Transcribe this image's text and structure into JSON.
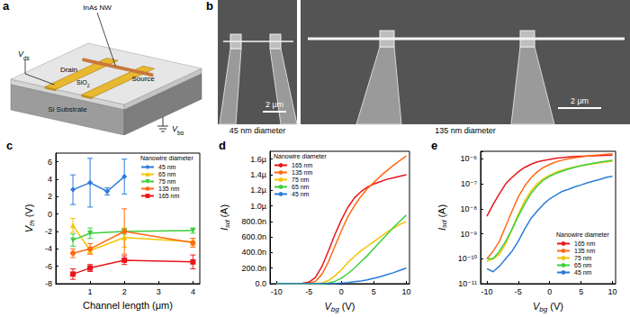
{
  "schematic": {
    "panel": "a",
    "nanowire": "InAs NW",
    "drain_voltage": "Vds",
    "drain": "Drain",
    "source": "Source",
    "oxide": "SiO2",
    "substrate": "Si Substrate",
    "gate_voltage": "Vbg"
  },
  "micrographs": {
    "panel": "b",
    "images": [
      {
        "scale_bar": "2 μm",
        "caption": "45 nm diameter"
      },
      {
        "scale_bar": "2 μm",
        "caption": "135 nm diameter"
      }
    ]
  },
  "chart_data": [
    {
      "type": "line",
      "title": "c",
      "x_label": "Channel length (μm)",
      "y_label": "Vth (V)",
      "legend_title": "Nanowire diameter",
      "legend": "upper right",
      "grid": false,
      "xlim": [
        0,
        4.2
      ],
      "xticks": [
        1,
        2,
        3,
        4
      ],
      "ylim": [
        -8,
        7
      ],
      "yticks": [
        -8,
        -6,
        -4,
        -2,
        0,
        2,
        4,
        6
      ],
      "series": [
        {
          "name": "45 nm",
          "color": "#2b7bd9",
          "marker": "diamond",
          "x": [
            0.5,
            1,
            1.5,
            2
          ],
          "values": [
            2.8,
            3.6,
            2.6,
            4.3
          ],
          "errors": [
            1.7,
            2.8,
            0.4,
            2.0
          ]
        },
        {
          "name": "65 nm",
          "color": "#f5c400",
          "marker": "triangle",
          "x": [
            0.5,
            1,
            2,
            4
          ],
          "values": [
            -1.3,
            -4.2,
            -2.7,
            -3.2
          ],
          "errors": [
            0.8,
            0.4,
            1.1,
            0.4
          ]
        },
        {
          "name": "75 nm",
          "color": "#3ccf3c",
          "marker": "triangle-down",
          "x": [
            0.5,
            1,
            2,
            4
          ],
          "values": [
            -3.0,
            -2.2,
            -2.0,
            -1.9
          ],
          "errors": [
            0.7,
            0.6,
            0.3,
            0.3
          ]
        },
        {
          "name": "135 nm",
          "color": "#ff6a13",
          "marker": "circle",
          "x": [
            0.5,
            1,
            2,
            4
          ],
          "values": [
            -4.5,
            -4.0,
            -2.0,
            -3.3
          ],
          "errors": [
            0.5,
            0.6,
            2.6,
            0.5
          ]
        },
        {
          "name": "165 nm",
          "color": "#e8161b",
          "marker": "square",
          "x": [
            0.5,
            1,
            2,
            4
          ],
          "values": [
            -6.9,
            -6.2,
            -5.3,
            -5.5
          ],
          "errors": [
            0.6,
            0.4,
            0.5,
            0.8
          ]
        }
      ]
    },
    {
      "type": "line",
      "title": "d",
      "x_label": "Vbg (V)",
      "y_label": "Isd (A)",
      "legend_title": "Nanowire diameter",
      "legend": "upper left",
      "grid": false,
      "xlim": [
        -11,
        10.5
      ],
      "xticks": [
        -10,
        -5,
        0,
        5,
        10
      ],
      "ylim": [
        0,
        1.7e-06
      ],
      "yticks": [
        {
          "value": 0,
          "label": "0.0"
        },
        {
          "value": 2e-07,
          "label": "200.0n"
        },
        {
          "value": 4e-07,
          "label": "400.0n"
        },
        {
          "value": 6e-07,
          "label": "600.0n"
        },
        {
          "value": 8e-07,
          "label": "800.0n"
        },
        {
          "value": 1e-06,
          "label": "1.0µ"
        },
        {
          "value": 1.2e-06,
          "label": "1.2µ"
        },
        {
          "value": 1.4e-06,
          "label": "1.4µ"
        },
        {
          "value": 1.6e-06,
          "label": "1.6µ"
        }
      ],
      "x": [
        -10,
        -9,
        -8,
        -7,
        -6,
        -5,
        -4,
        -3,
        -2,
        -1,
        0,
        1,
        2,
        3,
        4,
        5,
        6,
        7,
        8,
        9,
        10
      ],
      "series": [
        {
          "name": "165 nm",
          "color": "#e8161b",
          "values": [
            0,
            0,
            0,
            0,
            5e-09,
            2e-08,
            8e-08,
            2.2e-07,
            4.2e-07,
            6.3e-07,
            8.2e-07,
            9.8e-07,
            1.1e-06,
            1.18e-06,
            1.24e-06,
            1.28e-06,
            1.31e-06,
            1.34e-06,
            1.36e-06,
            1.38e-06,
            1.4e-06
          ]
        },
        {
          "name": "135 nm",
          "color": "#ff6a13",
          "values": [
            0,
            0,
            0,
            0,
            0,
            5e-09,
            3e-08,
            1.2e-07,
            2.8e-07,
            4.8e-07,
            6.8e-07,
            8.6e-07,
            1e-06,
            1.12e-06,
            1.22e-06,
            1.3e-06,
            1.38e-06,
            1.45e-06,
            1.52e-06,
            1.58e-06,
            1.64e-06
          ]
        },
        {
          "name": "75 nm",
          "color": "#f5c400",
          "values": [
            0,
            0,
            0,
            0,
            0,
            0,
            0,
            1e-08,
            4e-08,
            1e-07,
            1.8e-07,
            2.7e-07,
            3.5e-07,
            4.2e-07,
            4.8e-07,
            5.4e-07,
            6e-07,
            6.6e-07,
            7.1e-07,
            7.6e-07,
            8e-07
          ]
        },
        {
          "name": "65 nm",
          "color": "#3ccf3c",
          "values": [
            0,
            0,
            0,
            0,
            0,
            0,
            0,
            0,
            1e-08,
            3e-08,
            7e-08,
            1.3e-07,
            2e-07,
            2.8e-07,
            3.6e-07,
            4.5e-07,
            5.4e-07,
            6.3e-07,
            7.2e-07,
            8e-07,
            8.8e-07
          ]
        },
        {
          "name": "45 nm",
          "color": "#2b7bd9",
          "values": [
            0,
            0,
            0,
            0,
            0,
            0,
            0,
            0,
            0,
            0,
            1e-08,
            1.5e-08,
            2.5e-08,
            3.5e-08,
            5e-08,
            7e-08,
            9e-08,
            1.15e-07,
            1.4e-07,
            1.7e-07,
            2e-07
          ]
        }
      ]
    },
    {
      "type": "line",
      "title": "e",
      "x_label": "Vbg (V)",
      "y_label": "Isd (A)",
      "legend_title": "Nanowire diameter",
      "legend": "lower right",
      "grid": false,
      "log": "y",
      "xlim": [
        -11,
        10.5
      ],
      "xticks": [
        -10,
        -5,
        0,
        5,
        10
      ],
      "ylim": [
        1e-11,
        2e-06
      ],
      "yticks": [
        {
          "value": 1e-11,
          "label": "10⁻¹¹"
        },
        {
          "value": 1e-10,
          "label": "10⁻¹⁰"
        },
        {
          "value": 1e-09,
          "label": "10⁻⁹"
        },
        {
          "value": 1e-08,
          "label": "10⁻⁸"
        },
        {
          "value": 1e-07,
          "label": "10⁻⁷"
        },
        {
          "value": 1e-06,
          "label": "10⁻⁶"
        }
      ],
      "x": [
        -10,
        -9,
        -8,
        -7,
        -6,
        -5,
        -4,
        -3,
        -2,
        -1,
        0,
        1,
        2,
        3,
        4,
        5,
        6,
        7,
        8,
        9,
        10
      ],
      "series": [
        {
          "name": "165 nm",
          "color": "#e8161b",
          "values": [
            5e-09,
            1.5e-08,
            4e-08,
            1e-07,
            1.8e-07,
            3e-07,
            4.5e-07,
            6e-07,
            7.5e-07,
            8.5e-07,
            9.5e-07,
            1.05e-06,
            1.12e-06,
            1.18e-06,
            1.23e-06,
            1.27e-06,
            1.3e-06,
            1.33e-06,
            1.36e-06,
            1.38e-06,
            1.4e-06
          ]
        },
        {
          "name": "135 nm",
          "color": "#ff6a13",
          "values": [
            1e-10,
            2e-10,
            5e-10,
            2e-09,
            8e-09,
            3e-08,
            8e-08,
            1.7e-07,
            3e-07,
            4.5e-07,
            6e-07,
            7.5e-07,
            8.8e-07,
            1e-06,
            1.1e-06,
            1.2e-06,
            1.3e-06,
            1.38e-06,
            1.45e-06,
            1.52e-06,
            1.58e-06
          ]
        },
        {
          "name": "75 nm",
          "color": "#f5c400",
          "values": [
            8e-11,
            1e-10,
            1.5e-10,
            4e-10,
            1.5e-09,
            6e-09,
            2e-08,
            5e-08,
            1e-07,
            1.6e-07,
            2.2e-07,
            2.9e-07,
            3.5e-07,
            4.1e-07,
            4.7e-07,
            5.3e-07,
            5.8e-07,
            6.4e-07,
            6.9e-07,
            7.5e-07,
            8e-07
          ]
        },
        {
          "name": "65 nm",
          "color": "#3ccf3c",
          "values": [
            1e-10,
            1e-10,
            2e-10,
            5e-10,
            1.5e-09,
            5e-09,
            1.5e-08,
            4e-08,
            8e-08,
            1.4e-07,
            2e-07,
            2.6e-07,
            3.2e-07,
            3.9e-07,
            4.6e-07,
            5.3e-07,
            6e-07,
            6.7e-07,
            7.4e-07,
            8.1e-07,
            8.8e-07
          ]
        },
        {
          "name": "45 nm",
          "color": "#2b7bd9",
          "values": [
            4e-11,
            3e-11,
            5e-11,
            1e-10,
            2e-10,
            5e-10,
            1.5e-09,
            4e-09,
            8e-09,
            1.5e-08,
            2.5e-08,
            3.5e-08,
            5e-08,
            6e-08,
            7.5e-08,
            9e-08,
            1.1e-07,
            1.3e-07,
            1.5e-07,
            1.8e-07,
            2e-07
          ]
        }
      ]
    }
  ]
}
